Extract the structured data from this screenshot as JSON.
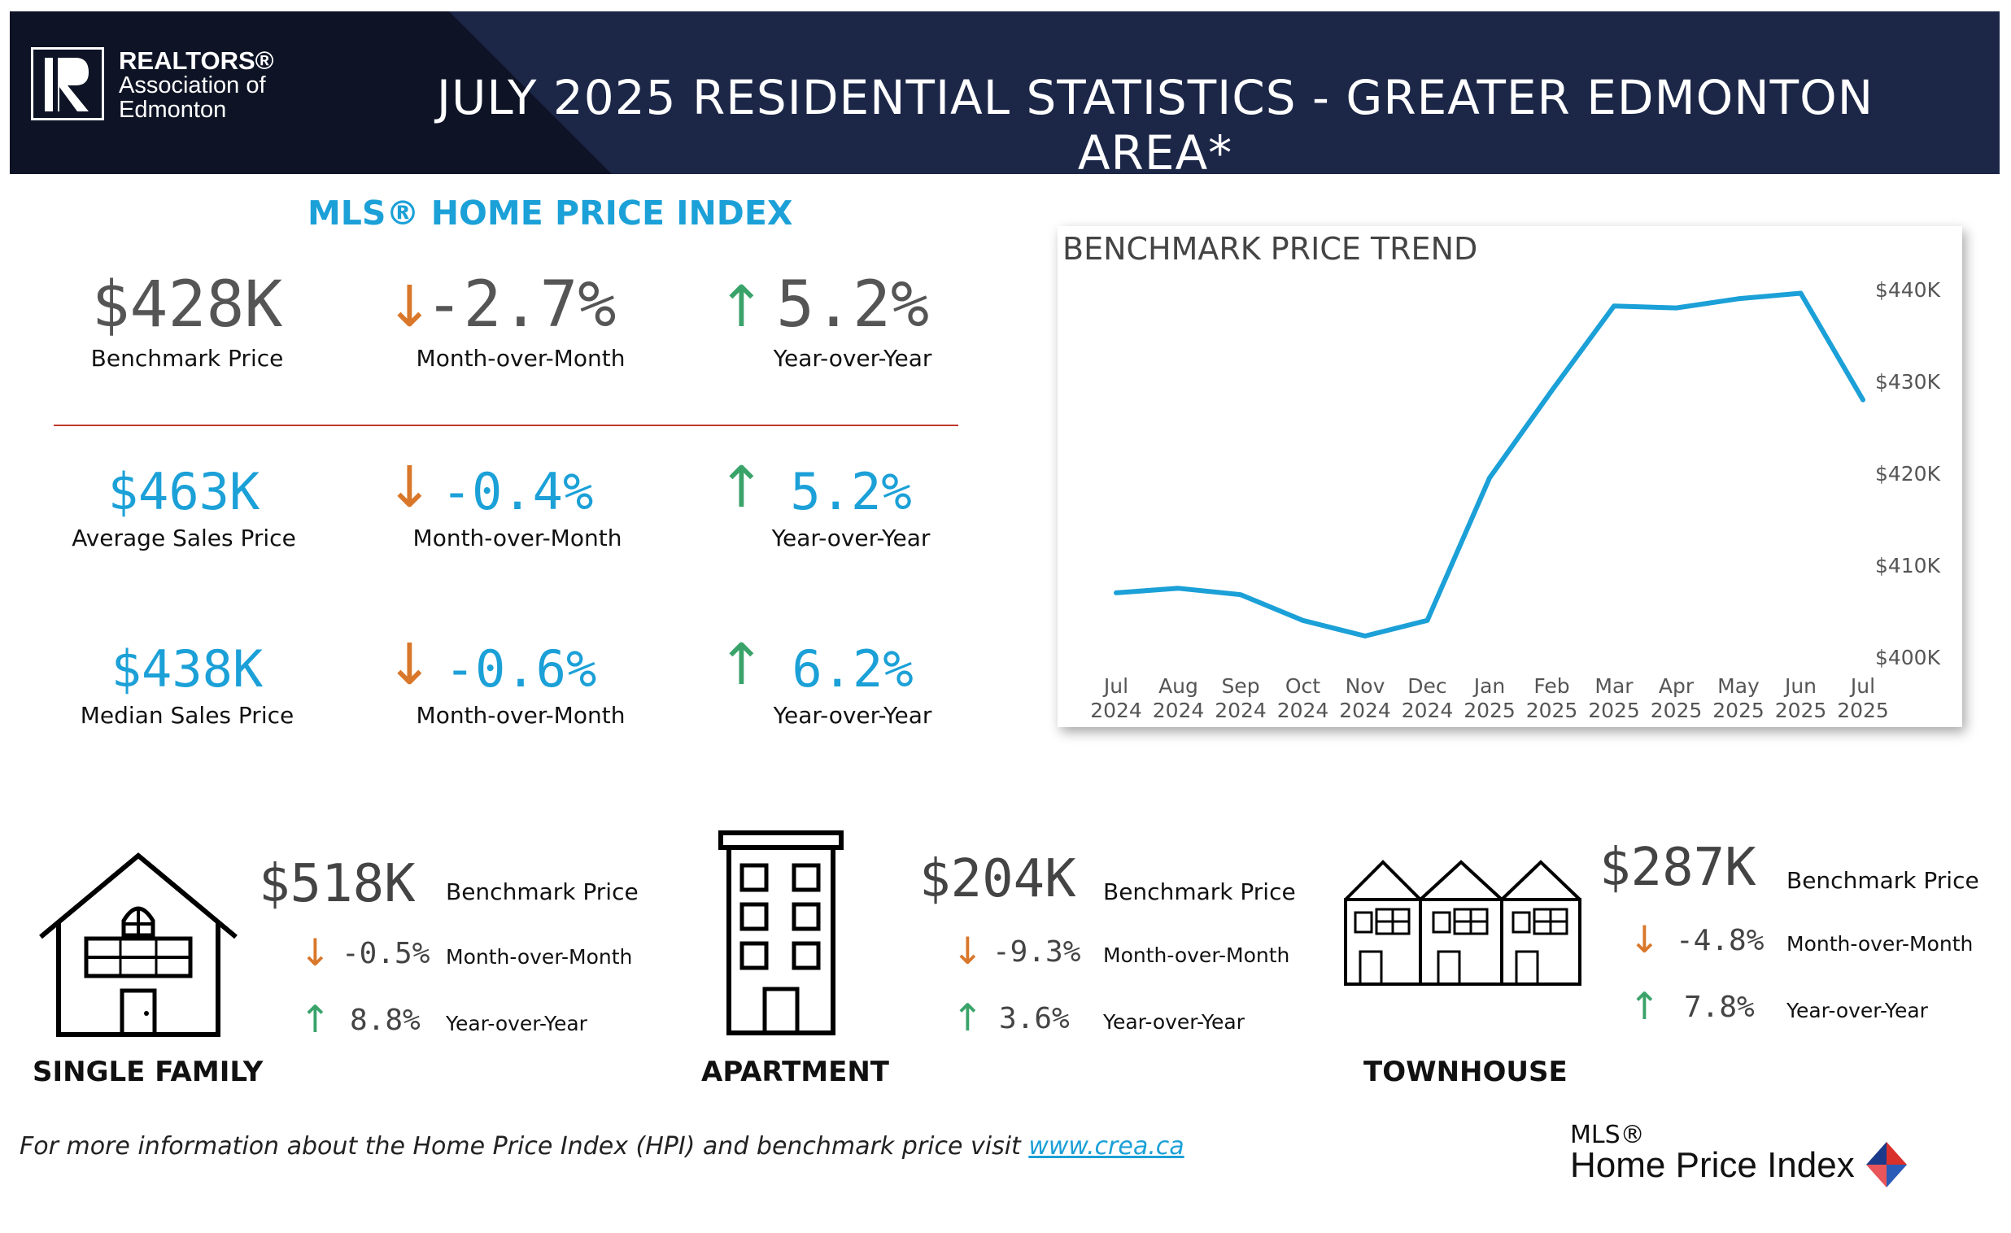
{
  "header": {
    "org_line1": "REALTORS®",
    "org_line2": "Association of",
    "org_line3": "Edmonton",
    "title": "JULY 2025 RESIDENTIAL STATISTICS - GREATER EDMONTON AREA*"
  },
  "hpi": {
    "heading": "MLS® HOME PRICE INDEX",
    "rows": [
      {
        "value": "$428K",
        "label": "Benchmark Price",
        "mom": "-2.7%",
        "mom_label": "Month-over-Month",
        "yoy": "5.2%",
        "yoy_label": "Year-over-Year"
      },
      {
        "value": "$463K",
        "label": "Average Sales Price",
        "mom": "-0.4%",
        "mom_label": "Month-over-Month",
        "yoy": "5.2%",
        "yoy_label": "Year-over-Year"
      },
      {
        "value": "$438K",
        "label": "Median Sales Price",
        "mom": "-0.6%",
        "mom_label": "Month-over-Month",
        "yoy": "6.2%",
        "yoy_label": "Year-over-Year"
      }
    ]
  },
  "chart_data": {
    "type": "line",
    "title": "BENCHMARK PRICE TREND",
    "x": [
      "Jul 2024",
      "Aug 2024",
      "Sep 2024",
      "Oct 2024",
      "Nov 2024",
      "Dec 2024",
      "Jan 2025",
      "Feb 2025",
      "Mar 2025",
      "Apr 2025",
      "May 2025",
      "Jun 2025",
      "Jul 2025"
    ],
    "series": [
      {
        "values": [
          407.0,
          407.5,
          406.8,
          404.0,
          402.3,
          404.0,
          419.5,
          429.0,
          438.2,
          438.0,
          439.0,
          439.6,
          428.0
        ]
      }
    ],
    "ylim": [
      400,
      440
    ],
    "yticks": [
      400,
      410,
      420,
      430,
      440
    ],
    "ytick_labels": [
      "$400K",
      "$410K",
      "$420K",
      "$430K",
      "$440K"
    ],
    "line_color": "#1ba0d7",
    "grid": false
  },
  "ptypes": [
    {
      "name": "SINGLE FAMILY",
      "value": "$518K",
      "label": "Benchmark Price",
      "mom": "-0.5%",
      "mom_label": "Month-over-Month",
      "yoy": "8.8%",
      "yoy_label": "Year-over-Year",
      "icon": "house-icon"
    },
    {
      "name": "APARTMENT",
      "value": "$204K",
      "label": "Benchmark Price",
      "mom": "-9.3%",
      "mom_label": "Month-over-Month",
      "yoy": "3.6%",
      "yoy_label": "Year-over-Year",
      "icon": "apartment-building-icon"
    },
    {
      "name": "TOWNHOUSE",
      "value": "$287K",
      "label": "Benchmark Price",
      "mom": "-4.8%",
      "mom_label": "Month-over-Month",
      "yoy": "7.8%",
      "yoy_label": "Year-over-Year",
      "icon": "townhouse-icon"
    }
  ],
  "footer": {
    "note": "For more information about the Home Price Index (HPI) and benchmark price visit ",
    "link": "www.crea.ca",
    "logo_sup": "MLS®",
    "logo_main": "Home Price Index"
  },
  "colors": {
    "header_bg": "#1c2748",
    "accent_blue": "#1ba0d7",
    "down_arrow": "#d9772a",
    "up_arrow": "#3aa36a",
    "divider": "#c0392b"
  },
  "icons": {
    "down": "↓",
    "up": "↑"
  }
}
